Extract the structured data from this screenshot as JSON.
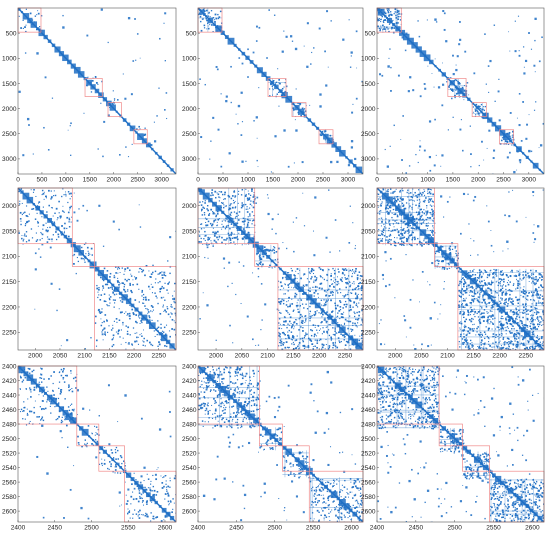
{
  "colors": {
    "dot": "#1f6fc4",
    "block": "#f08a8a",
    "axis": "#555555"
  },
  "chart_data": [
    {
      "type": "heatmap",
      "panel": "row1-col1",
      "xlim": [
        0,
        3300
      ],
      "ylim": [
        0,
        3300
      ],
      "xticks": [
        "0",
        "500",
        "1000",
        "1500",
        "2000",
        "2500",
        "3000"
      ],
      "yticks": [
        "500",
        "1000",
        "1500",
        "2000",
        "2500",
        "3000"
      ],
      "grid": false,
      "blocks": [
        [
          0,
          480
        ],
        [
          1400,
          1760
        ],
        [
          1880,
          2160
        ],
        [
          2420,
          2700
        ]
      ]
    },
    {
      "type": "heatmap",
      "panel": "row1-col2",
      "xlim": [
        0,
        3300
      ],
      "ylim": [
        0,
        3300
      ],
      "xticks": [
        "0",
        "500",
        "1000",
        "1500",
        "2000",
        "2500",
        "3000"
      ],
      "yticks": [
        "500",
        "1000",
        "1500",
        "2000",
        "2500",
        "3000"
      ],
      "grid": false,
      "blocks": [
        [
          0,
          480
        ],
        [
          1400,
          1760
        ],
        [
          1880,
          2160
        ],
        [
          2420,
          2700
        ]
      ]
    },
    {
      "type": "heatmap",
      "panel": "row1-col3",
      "xlim": [
        0,
        3300
      ],
      "ylim": [
        0,
        3300
      ],
      "xticks": [
        "0",
        "500",
        "1000",
        "1500",
        "2000",
        "2500",
        "3000"
      ],
      "yticks": [
        "500",
        "1000",
        "1500",
        "2000",
        "2500",
        "3000"
      ],
      "grid": false,
      "blocks": [
        [
          0,
          480
        ],
        [
          1400,
          1760
        ],
        [
          1880,
          2160
        ],
        [
          2420,
          2700
        ]
      ]
    },
    {
      "type": "heatmap",
      "panel": "row2-col1",
      "xlim": [
        1965,
        2285
      ],
      "ylim": [
        1965,
        2285
      ],
      "xticks": [
        "2000",
        "2050",
        "2100",
        "2150",
        "2200",
        "2250"
      ],
      "yticks": [
        "2000",
        "2050",
        "2100",
        "2150",
        "2200",
        "2250"
      ],
      "grid": false,
      "blocks": [
        [
          1965,
          2075
        ],
        [
          2075,
          2120
        ],
        [
          2120,
          2285
        ]
      ]
    },
    {
      "type": "heatmap",
      "panel": "row2-col2",
      "xlim": [
        1965,
        2285
      ],
      "ylim": [
        1965,
        2285
      ],
      "xticks": [
        "2000",
        "2050",
        "2100",
        "2150",
        "2200",
        "2250"
      ],
      "yticks": [
        "2000",
        "2050",
        "2100",
        "2150",
        "2200",
        "2250"
      ],
      "grid": false,
      "blocks": [
        [
          1965,
          2075
        ],
        [
          2075,
          2120
        ],
        [
          2120,
          2285
        ]
      ]
    },
    {
      "type": "heatmap",
      "panel": "row2-col3",
      "xlim": [
        1965,
        2285
      ],
      "ylim": [
        1965,
        2285
      ],
      "xticks": [
        "2000",
        "2050",
        "2100",
        "2150",
        "2200",
        "2250"
      ],
      "yticks": [
        "2000",
        "2050",
        "2100",
        "2150",
        "2200",
        "2250"
      ],
      "grid": false,
      "blocks": [
        [
          1965,
          2075
        ],
        [
          2075,
          2120
        ],
        [
          2120,
          2285
        ]
      ]
    },
    {
      "type": "heatmap",
      "panel": "row3-col1",
      "xlim": [
        2400,
        2615
      ],
      "ylim": [
        2400,
        2615
      ],
      "xticks": [
        "2400",
        "2450",
        "2500",
        "2550",
        "2600"
      ],
      "yticks": [
        "2400",
        "2420",
        "2440",
        "2460",
        "2480",
        "2500",
        "2520",
        "2540",
        "2560",
        "2580",
        "2600"
      ],
      "grid": false,
      "blocks": [
        [
          2400,
          2480
        ],
        [
          2480,
          2510
        ],
        [
          2510,
          2545
        ],
        [
          2545,
          2615
        ]
      ]
    },
    {
      "type": "heatmap",
      "panel": "row3-col2",
      "xlim": [
        2400,
        2615
      ],
      "ylim": [
        2400,
        2615
      ],
      "xticks": [
        "2400",
        "2450",
        "2500",
        "2550",
        "2600"
      ],
      "yticks": [
        "2400",
        "2420",
        "2440",
        "2460",
        "2480",
        "2500",
        "2520",
        "2540",
        "2560",
        "2580",
        "2600"
      ],
      "grid": false,
      "blocks": [
        [
          2400,
          2480
        ],
        [
          2480,
          2510
        ],
        [
          2510,
          2545
        ],
        [
          2545,
          2615
        ]
      ]
    },
    {
      "type": "heatmap",
      "panel": "row3-col3",
      "xlim": [
        2400,
        2615
      ],
      "ylim": [
        2400,
        2615
      ],
      "xticks": [
        "2400",
        "2450",
        "2500",
        "2550",
        "2600"
      ],
      "yticks": [
        "2400",
        "2420",
        "2440",
        "2460",
        "2480",
        "2500",
        "2520",
        "2540",
        "2560",
        "2580",
        "2600"
      ],
      "grid": false,
      "blocks": [
        [
          2400,
          2480
        ],
        [
          2480,
          2510
        ],
        [
          2510,
          2545
        ],
        [
          2545,
          2615
        ]
      ]
    }
  ]
}
